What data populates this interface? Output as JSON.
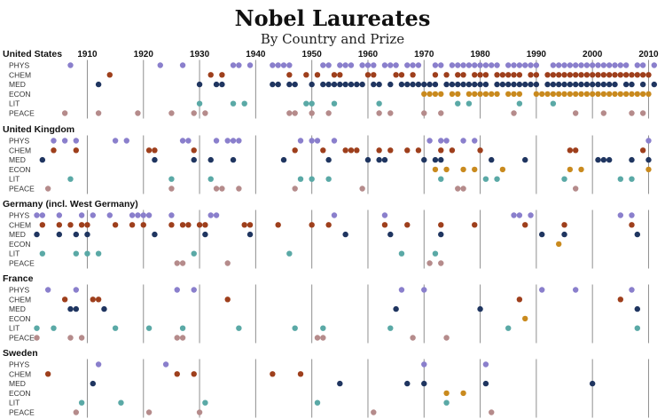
{
  "chart_data": {
    "type": "scatter",
    "title": "Nobel Laureates",
    "subtitle": "By Country and Prize",
    "xlim": [
      1901,
      2011
    ],
    "x_ticks": [
      1910,
      1920,
      1930,
      1940,
      1950,
      1960,
      1970,
      1980,
      1990,
      2000,
      2010
    ],
    "categories": [
      "PHYS",
      "CHEM",
      "MED",
      "ECON",
      "LIT",
      "PEACE"
    ],
    "colors": {
      "PHYS": "#8a7fcc",
      "CHEM": "#9e3f1c",
      "MED": "#1f3560",
      "ECON": "#c98a1e",
      "LIT": "#5aa9a6",
      "PEACE": "#b58b8b"
    },
    "panels": [
      {
        "country": "United States",
        "years": {
          "PHYS": [
            1907,
            1923,
            1927,
            1936,
            1937,
            1939,
            1943,
            1944,
            1945,
            1946,
            1952,
            1953,
            1955,
            1956,
            1957,
            1959,
            1960,
            1961,
            1963,
            1964,
            1965,
            1967,
            1968,
            1969,
            1972,
            1973,
            1975,
            1976,
            1977,
            1978,
            1979,
            1980,
            1981,
            1982,
            1983,
            1985,
            1986,
            1987,
            1988,
            1989,
            1990,
            1993,
            1994,
            1995,
            1996,
            1997,
            1998,
            1999,
            2000,
            2001,
            2002,
            2003,
            2004,
            2005,
            2006,
            2008,
            2009,
            2011
          ],
          "CHEM": [
            1914,
            1932,
            1934,
            1946,
            1949,
            1951,
            1954,
            1955,
            1960,
            1961,
            1965,
            1966,
            1968,
            1972,
            1974,
            1976,
            1977,
            1979,
            1980,
            1981,
            1983,
            1984,
            1985,
            1986,
            1987,
            1989,
            1990,
            1992,
            1993,
            1994,
            1995,
            1996,
            1997,
            1998,
            1999,
            2000,
            2001,
            2002,
            2003,
            2004,
            2005,
            2006,
            2007,
            2008,
            2009,
            2010
          ],
          "MED": [
            1912,
            1930,
            1933,
            1934,
            1943,
            1944,
            1946,
            1947,
            1950,
            1952,
            1953,
            1954,
            1955,
            1956,
            1957,
            1958,
            1959,
            1961,
            1962,
            1964,
            1966,
            1967,
            1968,
            1969,
            1970,
            1971,
            1972,
            1974,
            1975,
            1976,
            1977,
            1978,
            1979,
            1980,
            1981,
            1983,
            1984,
            1985,
            1986,
            1987,
            1988,
            1989,
            1990,
            1992,
            1993,
            1994,
            1995,
            1996,
            1997,
            1998,
            1999,
            2000,
            2001,
            2002,
            2003,
            2004,
            2006,
            2007,
            2009,
            2011
          ],
          "ECON": [
            1970,
            1971,
            1972,
            1973,
            1975,
            1976,
            1978,
            1979,
            1980,
            1981,
            1982,
            1983,
            1985,
            1986,
            1987,
            1990,
            1991,
            1992,
            1993,
            1994,
            1995,
            1996,
            1997,
            1998,
            1999,
            2000,
            2001,
            2002,
            2003,
            2004,
            2005,
            2006,
            2007,
            2008,
            2009,
            2010
          ],
          "LIT": [
            1930,
            1936,
            1938,
            1949,
            1950,
            1954,
            1962,
            1976,
            1978,
            1987,
            1993
          ],
          "PEACE": [
            1906,
            1912,
            1919,
            1925,
            1929,
            1931,
            1946,
            1947,
            1950,
            1953,
            1962,
            1964,
            1970,
            1973,
            1986,
            1997,
            2002,
            2007,
            2009
          ]
        }
      },
      {
        "country": "United Kingdom",
        "years": {
          "PHYS": [
            1904,
            1906,
            1908,
            1915,
            1917,
            1927,
            1928,
            1933,
            1935,
            1936,
            1937,
            1948,
            1950,
            1951,
            1954,
            1971,
            1973,
            1974,
            1977,
            1979,
            2010
          ],
          "CHEM": [
            1904,
            1908,
            1921,
            1922,
            1929,
            1947,
            1952,
            1956,
            1957,
            1958,
            1962,
            1964,
            1967,
            1969,
            1973,
            1975,
            1980,
            1996,
            1997,
            2009
          ],
          "MED": [
            1902,
            1922,
            1929,
            1932,
            1936,
            1945,
            1953,
            1960,
            1962,
            1963,
            1970,
            1972,
            1973,
            1982,
            1988,
            2001,
            2002,
            2003,
            2007,
            2010
          ],
          "ECON": [
            1972,
            1974,
            1977,
            1979,
            1984,
            1996,
            1998,
            2010
          ],
          "LIT": [
            1907,
            1925,
            1932,
            1948,
            1950,
            1953,
            1973,
            1981,
            1983,
            1995,
            2005,
            2007
          ],
          "PEACE": [
            1903,
            1925,
            1933,
            1934,
            1937,
            1947,
            1959,
            1976,
            1977,
            1997
          ]
        }
      },
      {
        "country": "Germany (incl. West Germany)",
        "years": {
          "PHYS": [
            1901,
            1902,
            1905,
            1909,
            1911,
            1914,
            1918,
            1919,
            1920,
            1921,
            1925,
            1932,
            1933,
            1954,
            1963,
            1986,
            1987,
            1989,
            2005,
            2007
          ],
          "CHEM": [
            1902,
            1905,
            1907,
            1909,
            1910,
            1915,
            1918,
            1920,
            1925,
            1927,
            1928,
            1930,
            1931,
            1938,
            1939,
            1944,
            1950,
            1953,
            1963,
            1967,
            1973,
            1979,
            1988,
            1995,
            2007
          ],
          "MED": [
            1901,
            1905,
            1908,
            1910,
            1922,
            1931,
            1939,
            1956,
            1964,
            1973,
            1991,
            1995,
            2008
          ],
          "ECON": [
            1994
          ],
          "LIT": [
            1902,
            1908,
            1910,
            1912,
            1929,
            1946,
            1966,
            1972
          ],
          "PEACE": [
            1926,
            1927,
            1935,
            1971,
            1973
          ]
        }
      },
      {
        "country": "France",
        "years": {
          "PHYS": [
            1903,
            1908,
            1926,
            1929,
            1966,
            1970,
            1991,
            1997,
            2007
          ],
          "CHEM": [
            1906,
            1911,
            1912,
            1935,
            1987,
            2005
          ],
          "MED": [
            1907,
            1908,
            1913,
            1965,
            1980,
            2008
          ],
          "ECON": [
            1988
          ],
          "LIT": [
            1901,
            1904,
            1915,
            1921,
            1927,
            1937,
            1947,
            1952,
            1964,
            1985,
            2008
          ],
          "PEACE": [
            1901,
            1907,
            1909,
            1926,
            1927,
            1951,
            1952,
            1968,
            1974
          ]
        }
      },
      {
        "country": "Sweden",
        "years": {
          "PHYS": [
            1912,
            1924,
            1970,
            1981
          ],
          "CHEM": [
            1903,
            1926,
            1929,
            1943,
            1948
          ],
          "MED": [
            1911,
            1955,
            1967,
            1970,
            1981,
            2000
          ],
          "ECON": [
            1974,
            1977
          ],
          "LIT": [
            1909,
            1916,
            1931,
            1951,
            1974
          ],
          "PEACE": [
            1908,
            1921,
            1930,
            1961,
            1982
          ]
        }
      }
    ]
  }
}
